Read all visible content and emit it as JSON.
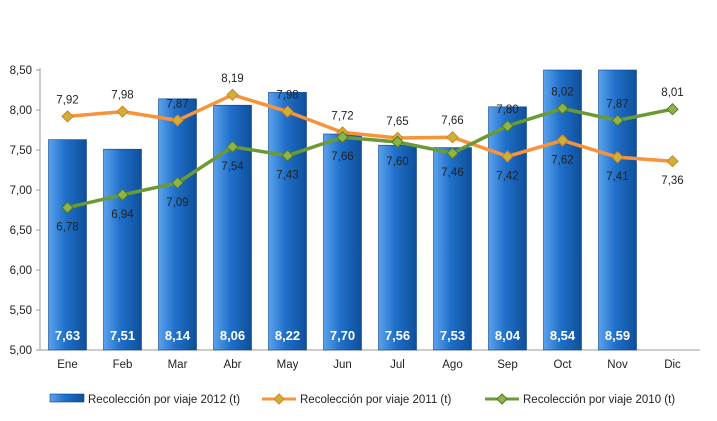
{
  "chart_data": {
    "type": "bar",
    "categories": [
      "Ene",
      "Feb",
      "Mar",
      "Abr",
      "May",
      "Jun",
      "Jul",
      "Ago",
      "Sep",
      "Oct",
      "Nov",
      "Dic"
    ],
    "ylim": [
      5.0,
      8.5
    ],
    "yticks": [
      "5,00",
      "5,50",
      "6,00",
      "6,50",
      "7,00",
      "7,50",
      "8,00",
      "8,50"
    ],
    "legend_position": "bottom",
    "series": [
      {
        "name": "Recolección por viaje 2012 (t)",
        "type": "bar",
        "color": "#1f6fc9",
        "values": [
          7.63,
          7.51,
          8.14,
          8.06,
          8.22,
          7.7,
          7.56,
          7.53,
          8.04,
          8.54,
          8.59,
          null
        ],
        "labels": [
          "7,63",
          "7,51",
          "8,14",
          "8,06",
          "8,22",
          "7,70",
          "7,56",
          "7,53",
          "8,04",
          "8,54",
          "8,59",
          ""
        ]
      },
      {
        "name": "Recolección por viaje 2011 (t)",
        "type": "line",
        "color": "#f7933a",
        "values": [
          7.92,
          7.98,
          7.87,
          8.19,
          7.98,
          7.72,
          7.65,
          7.66,
          7.42,
          7.62,
          7.41,
          7.36
        ],
        "labels": [
          "7,92",
          "7,98",
          "7,87",
          "8,19",
          "7,98",
          "7,72",
          "7,65",
          "7,66",
          "7,42",
          "7,62",
          "7,41",
          "7,36"
        ]
      },
      {
        "name": "Recolección por viaje 2010 (t)",
        "type": "line",
        "color": "#6a9a35",
        "values": [
          6.78,
          6.94,
          7.09,
          7.54,
          7.43,
          7.66,
          7.6,
          7.46,
          7.8,
          8.02,
          7.87,
          8.01
        ],
        "labels": [
          "6,78",
          "6,94",
          "7,09",
          "7,54",
          "7,43",
          "7,66",
          "7,60",
          "7,46",
          "7,80",
          "8,02",
          "7,87",
          "8,01"
        ]
      }
    ]
  }
}
